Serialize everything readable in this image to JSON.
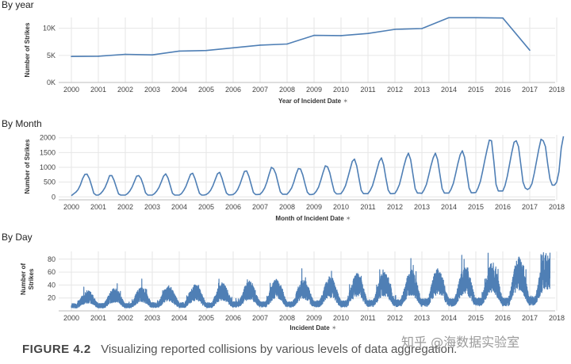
{
  "chart_data": [
    {
      "type": "line",
      "title": "By year",
      "xlabel": "Year of Incident Date",
      "ylabel": "Number of Strikes",
      "x_ticks": [
        "2000",
        "2001",
        "2002",
        "2003",
        "2004",
        "2005",
        "2006",
        "2007",
        "2008",
        "2009",
        "2010",
        "2011",
        "2012",
        "2013",
        "2014",
        "2015",
        "2016",
        "2017",
        "2018"
      ],
      "y_ticks": [
        "0K",
        "5K",
        "10K"
      ],
      "y_tick_values": [
        0,
        5000,
        10000
      ],
      "ylim": [
        0,
        12000
      ],
      "xlim": [
        2000,
        2018
      ],
      "color": "#4f7fb5",
      "x": [
        2000,
        2001,
        2002,
        2003,
        2004,
        2005,
        2006,
        2007,
        2008,
        2009,
        2010,
        2011,
        2012,
        2013,
        2014,
        2015,
        2016,
        2017
      ],
      "values": [
        4800,
        4850,
        5200,
        5100,
        5800,
        5900,
        6400,
        6900,
        7100,
        8700,
        8650,
        9050,
        9800,
        9950,
        11950,
        11950,
        11900,
        5950
      ]
    },
    {
      "type": "line",
      "title": "By Month",
      "xlabel": "Month of Incident Date",
      "ylabel": "Number of Strikes",
      "x_ticks": [
        "2000",
        "2001",
        "2002",
        "2003",
        "2004",
        "2005",
        "2006",
        "2007",
        "2008",
        "2009",
        "2010",
        "2011",
        "2012",
        "2013",
        "2014",
        "2015",
        "2016",
        "2017",
        "2018"
      ],
      "y_ticks": [
        "0",
        "500",
        "1000",
        "1500",
        "2000"
      ],
      "y_tick_values": [
        0,
        500,
        1000,
        1500,
        2000
      ],
      "ylim": [
        -100,
        2100
      ],
      "xlim": [
        2000,
        2018
      ],
      "color": "#4f7fb5",
      "x_start": 2000.0,
      "x_step": 0.0833333,
      "values": [
        40,
        100,
        160,
        250,
        400,
        620,
        760,
        770,
        620,
        380,
        120,
        60,
        60,
        110,
        200,
        320,
        500,
        720,
        720,
        560,
        320,
        100,
        60,
        60,
        60,
        110,
        200,
        330,
        510,
        700,
        720,
        620,
        400,
        140,
        60,
        60,
        60,
        110,
        200,
        320,
        500,
        700,
        780,
        640,
        380,
        120,
        60,
        60,
        60,
        110,
        220,
        360,
        560,
        760,
        800,
        620,
        360,
        120,
        60,
        60,
        80,
        130,
        230,
        380,
        580,
        780,
        830,
        640,
        370,
        130,
        70,
        70,
        80,
        140,
        250,
        420,
        640,
        860,
        880,
        700,
        420,
        150,
        80,
        80,
        90,
        170,
        300,
        500,
        760,
        1000,
        950,
        780,
        460,
        170,
        90,
        90,
        90,
        180,
        300,
        500,
        760,
        960,
        940,
        740,
        430,
        160,
        80,
        80,
        100,
        190,
        330,
        560,
        820,
        1050,
        1020,
        820,
        480,
        180,
        100,
        100,
        110,
        220,
        380,
        640,
        920,
        1200,
        1280,
        1050,
        620,
        220,
        110,
        110,
        110,
        220,
        380,
        640,
        920,
        1200,
        1320,
        1080,
        620,
        230,
        110,
        110,
        120,
        240,
        420,
        720,
        1040,
        1320,
        1480,
        1260,
        760,
        280,
        130,
        130,
        120,
        240,
        420,
        720,
        1040,
        1320,
        1480,
        1260,
        760,
        280,
        130,
        130,
        130,
        260,
        460,
        780,
        1120,
        1420,
        1560,
        1340,
        800,
        300,
        140,
        140,
        150,
        300,
        520,
        860,
        1240,
        1600,
        1920,
        1900,
        1200,
        420,
        200,
        200,
        200,
        380,
        700,
        1100,
        1500,
        1850,
        1900,
        1700,
        1100,
        500,
        300,
        250,
        300,
        450,
        800,
        1200,
        1600,
        1950,
        1900,
        1700,
        1100,
        600,
        400,
        400,
        500,
        850,
        1650,
        2050
      ]
    },
    {
      "type": "line",
      "title": "By Day",
      "xlabel": "Incident Date",
      "ylabel_lines": [
        "Number of",
        "Strikes"
      ],
      "x_ticks": [
        "2000",
        "2001",
        "2002",
        "2003",
        "2004",
        "2005",
        "2006",
        "2007",
        "2008",
        "2009",
        "2010",
        "2011",
        "2012",
        "2013",
        "2014",
        "2015",
        "2016",
        "2017",
        "2018"
      ],
      "y_ticks": [
        "20",
        "40",
        "60",
        "80"
      ],
      "y_tick_values": [
        20,
        40,
        60,
        80
      ],
      "ylim": [
        0,
        92
      ],
      "xlim": [
        2000,
        2018
      ],
      "color": "#4f7fb5",
      "x_start": 2000.0,
      "x_end": 2017.75,
      "yearly_peak_means": [
        22,
        24,
        25,
        27,
        28,
        30,
        32,
        34,
        34,
        37,
        40,
        42,
        44,
        46,
        48,
        52,
        58,
        62
      ],
      "yearly_trough_means": [
        8,
        8,
        8,
        9,
        9,
        9,
        10,
        10,
        10,
        11,
        11,
        12,
        12,
        13,
        13,
        14,
        14,
        16
      ],
      "max_spike": 90
    }
  ],
  "caption": {
    "label": "FIGURE 4.2",
    "text": "Visualizing reported collisions by various levels of data aggregation."
  },
  "watermark": "知乎 @海数据实验室"
}
